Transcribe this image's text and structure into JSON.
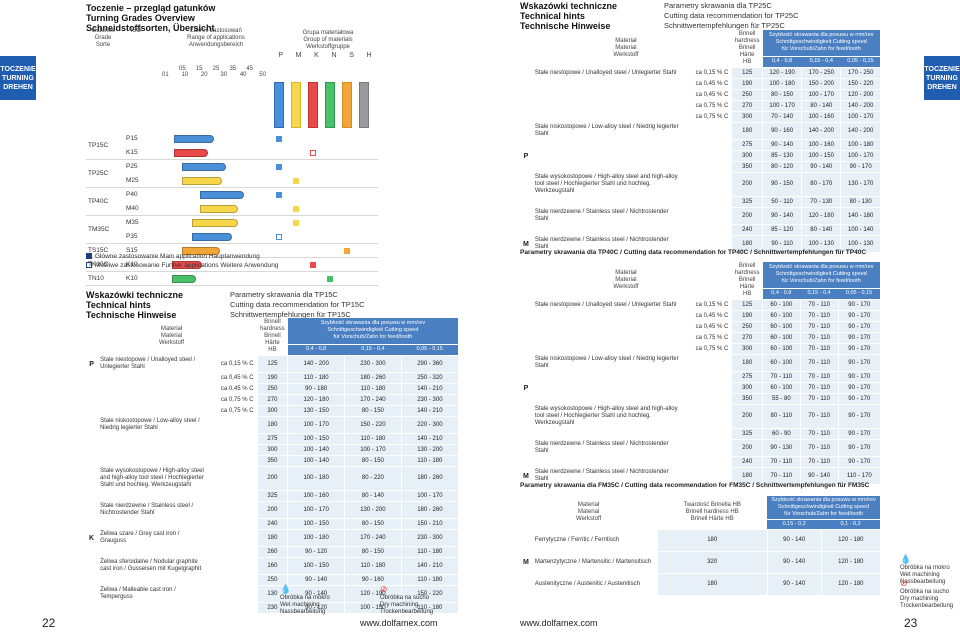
{
  "left_page": {
    "tab": [
      "TOCZENIE",
      "TURNING",
      "DREHEN"
    ],
    "title": [
      "Toczenie – przegląd gatunków",
      "Turning Grades Overview",
      "Schneidstoffsorten, Übersicht"
    ],
    "grade_chart": {
      "col_headers": {
        "grade": [
          "Gatunek",
          "Grade",
          "Sorte"
        ],
        "iso": "ISO",
        "range": [
          "Zakres zastosowań",
          "Range of applications",
          "Anwendungsbereich"
        ],
        "range_ticks_top": [
          "05",
          "15",
          "25",
          "35",
          "45"
        ],
        "range_ticks_bottom": [
          "01",
          "10",
          "20",
          "30",
          "40",
          "50"
        ],
        "group": [
          "Grupa materiałowa",
          "Group of materials",
          "Werkstoffgruppe"
        ],
        "group_letters": [
          "P",
          "M",
          "K",
          "N",
          "S",
          "H"
        ]
      },
      "rows": [
        {
          "grade": "TP15C",
          "iso": [
            "P15",
            "K15"
          ]
        },
        {
          "grade": "TP25C",
          "iso": [
            "P25",
            "M25"
          ]
        },
        {
          "grade": "TP40C",
          "iso": [
            "P40",
            "M40"
          ]
        },
        {
          "grade": "TM35C",
          "iso": [
            "M35",
            "P35"
          ]
        },
        {
          "grade": "TS15C",
          "iso": [
            "S15"
          ]
        },
        {
          "grade": "TK10C",
          "iso": [
            "K10"
          ]
        },
        {
          "grade": "TN10",
          "iso": [
            "K10"
          ]
        }
      ],
      "legend": {
        "main": "Główne zastosowanie Main application Hauptanwendung",
        "further": "Możliwe zastosowanie Further applications Weitere Anwendung"
      }
    },
    "hints": {
      "title": [
        "Wskazówki techniczne",
        "Technical hints",
        "Technische Hinweise"
      ],
      "subtitle": [
        "Parametry skrawania dla TP15C",
        "Cutting data recommendation for TP15C",
        "Schnittwertempfehlungen für TP15C"
      ],
      "header": {
        "material": [
          "Materiał",
          "Material",
          "Werkstoff"
        ],
        "hardness": [
          "Brinell",
          "hardness",
          "Brinell Härte",
          "HB"
        ],
        "speed": [
          "Szybkość skrawania dla posuwu w mm/rev",
          "Schnittgeschwindigkeit Cutting speed",
          "für Vorschub/Zahn for feed/tooth"
        ],
        "feeds": [
          "0,4 - 0,8",
          "0,15 - 0,4",
          "0,05 - 0,15"
        ]
      },
      "rows": [
        {
          "group": "P",
          "material": "Stale niestopowe / Unalloyed steel / Unlegierter Stahl",
          "sub": "ca 0,15 % C",
          "hb": "125",
          "v": [
            "140 - 200",
            "230 - 300",
            "290 - 360"
          ]
        },
        {
          "sub": "ca 0,45 % C",
          "hb": "190",
          "v": [
            "110 - 180",
            "180 - 260",
            "250 - 320"
          ]
        },
        {
          "sub": "ca 0,45 % C",
          "hb": "250",
          "v": [
            "90 - 180",
            "110 - 180",
            "140 - 210"
          ]
        },
        {
          "sub": "ca 0,75 % C",
          "hb": "270",
          "v": [
            "120 - 180",
            "170 - 240",
            "230 - 300"
          ]
        },
        {
          "sub": "ca 0,75 % C",
          "hb": "300",
          "v": [
            "130 - 150",
            "80 - 150",
            "140 - 210"
          ]
        },
        {
          "material": "Stale niskostopowe / Low-alloy steel / Niedrig legierter Stahl",
          "hb": "180",
          "v": [
            "100 - 170",
            "150 - 220",
            "220 - 300"
          ]
        },
        {
          "hb": "275",
          "v": [
            "100 - 150",
            "110 - 180",
            "140 - 210"
          ]
        },
        {
          "hb": "300",
          "v": [
            "100 - 140",
            "100 - 170",
            "130 - 200"
          ]
        },
        {
          "hb": "350",
          "v": [
            "100 - 140",
            "80 - 150",
            "110 - 180"
          ]
        },
        {
          "material": "Stale wysokostopowe / High-alloy steel and high-alloy tool steel / Hochlegierter Stahl und hochleg. Werkzeugstahl",
          "hb": "200",
          "v": [
            "100 - 180",
            "80 - 220",
            "180 - 260"
          ]
        },
        {
          "hb": "325",
          "v": [
            "100 - 160",
            "80 - 140",
            "100 - 170"
          ]
        },
        {
          "material": "Stale nierdzewne / Stainless steel / Nichtrostender Stahl",
          "hb": "200",
          "v": [
            "100 - 170",
            "130 - 200",
            "180 - 260"
          ]
        },
        {
          "hb": "240",
          "v": [
            "100 - 150",
            "80 - 150",
            "150 - 210"
          ]
        },
        {
          "group": "K",
          "material": "Żeliwa szare / Grey cast iron / Grauguss",
          "hb": "180",
          "v": [
            "100 - 180",
            "170 - 240",
            "230 - 300"
          ]
        },
        {
          "hb": "260",
          "v": [
            "90 - 120",
            "80 - 150",
            "110 - 180"
          ]
        },
        {
          "material": "Żeliwa sferoidalne / Nodular graphite cast iron / Gusseisen mit Kugelgraphit",
          "hb": "160",
          "v": [
            "100 - 150",
            "110 - 180",
            "140 - 210"
          ]
        },
        {
          "hb": "250",
          "v": [
            "90 - 140",
            "90 - 160",
            "110 - 180"
          ]
        },
        {
          "material": "Żeliwa / Malleable cast iron / Temperguss",
          "hb": "130",
          "v": [
            "90 - 140",
            "120 - 190",
            "150 - 220"
          ]
        },
        {
          "hb": "230",
          "v": [
            "90 - 120",
            "100 - 150",
            "110 - 180"
          ]
        }
      ]
    },
    "wet": [
      "Obróbka na mokro",
      "Wet machining",
      "Nassbearbeitung"
    ],
    "dry": [
      "Obróbka na sucho",
      "Dry machining",
      "Trockenbearbeitung"
    ],
    "page_number": "22",
    "url": "www.dolfamex.com"
  },
  "right_page": {
    "tab": [
      "TOCZENIE",
      "TURNING",
      "DREHEN"
    ],
    "title": [
      "Wskazówki techniczne",
      "Technical hints",
      "Technische Hinweise"
    ],
    "subtitle": [
      "Parametry skrawania dla TP25C",
      "Cutting data recommendation for TP25C",
      "Schnittwertempfehlungen für TP25C"
    ],
    "header": {
      "material": [
        "Materiał",
        "Material",
        "Werkstoff"
      ],
      "hardness": [
        "Brinell",
        "hardness",
        "Brinell Härte",
        "HB"
      ],
      "speed": [
        "Szybkość skrawania dla posuwu w mm/rev",
        "Schnittgeschwindigkeit Cutting speed",
        "für Vorschub/Zahn for feed/tooth"
      ],
      "feeds": [
        "0,4 - 0,8",
        "0,15 - 0,4",
        "0,05 - 0,15"
      ]
    },
    "tp25c": [
      {
        "sub": "ca 0,15 % C",
        "hb": "125",
        "v": [
          "120 - 190",
          "170 - 250",
          "170 - 250"
        ]
      },
      {
        "sub": "ca 0,45 % C",
        "hb": "190",
        "v": [
          "100 - 180",
          "150 - 200",
          "150 - 220"
        ]
      },
      {
        "sub": "ca 0,45 % C",
        "hb": "250",
        "v": [
          "80 - 150",
          "100 - 170",
          "120 - 200"
        ]
      },
      {
        "sub": "ca 0,75 % C",
        "hb": "270",
        "v": [
          "100 - 170",
          "80 - 140",
          "140 - 200"
        ]
      },
      {
        "sub": "ca 0,75 % C",
        "hb": "300",
        "v": [
          "70 - 140",
          "100 - 160",
          "100 - 170"
        ]
      },
      {
        "hb": "180",
        "v": [
          "90 - 160",
          "140 - 200",
          "140 - 200"
        ]
      },
      {
        "hb": "275",
        "v": [
          "90 - 140",
          "100 - 160",
          "100 - 180"
        ]
      },
      {
        "hb": "300",
        "v": [
          "85 - 130",
          "100 - 150",
          "100 - 170"
        ]
      },
      {
        "hb": "350",
        "v": [
          "80 - 120",
          "90 - 140",
          "90 - 170"
        ]
      },
      {
        "hb": "200",
        "v": [
          "90 - 150",
          "80 - 170",
          "130 - 170"
        ]
      },
      {
        "hb": "325",
        "v": [
          "50 - 110",
          "70 - 130",
          "80 - 130"
        ]
      },
      {
        "hb": "200",
        "v": [
          "90 - 140",
          "120 - 180",
          "140 - 180"
        ]
      },
      {
        "hb": "240",
        "v": [
          "85 - 120",
          "80 - 140",
          "100 - 140"
        ]
      },
      {
        "hb": "180",
        "v": [
          "90 - 110",
          "100 - 130",
          "100 - 130"
        ]
      }
    ],
    "tp25c_materials": [
      "Stale niestopowe / Unalloyed steel / Unlegierter Stahl",
      "Stale niskostopowe / Low-alloy steel / Niedrig legierter Stahl",
      "Stale wysokostopowe / High-alloy steel and high-alloy tool steel / Hochlegierter Stahl und hochleg. Werkzeugstahl",
      "Stale nierdzewne / Stainless steel / Nichtrostender Stahl",
      "Stale nierdzewne / Stainless steel / Nichtrostender Stahl"
    ],
    "tp40c_title": "Parametry skrawania dla TP40C / Cutting data recommendation for TP40C / Schnittwertempfehlungen für TP40C",
    "tp40c": [
      {
        "sub": "ca 0,15 % C",
        "hb": "125",
        "v": [
          "60 - 100",
          "70 - 110",
          "90 - 170"
        ]
      },
      {
        "sub": "ca 0,45 % C",
        "hb": "190",
        "v": [
          "60 - 100",
          "70 - 110",
          "90 - 170"
        ]
      },
      {
        "sub": "ca 0,45 % C",
        "hb": "250",
        "v": [
          "60 - 100",
          "70 - 110",
          "90 - 170"
        ]
      },
      {
        "sub": "ca 0,75 % C",
        "hb": "270",
        "v": [
          "60 - 100",
          "70 - 110",
          "90 - 170"
        ]
      },
      {
        "sub": "ca 0,75 % C",
        "hb": "300",
        "v": [
          "60 - 100",
          "70 - 110",
          "90 - 170"
        ]
      },
      {
        "hb": "180",
        "v": [
          "60 - 100",
          "70 - 110",
          "90 - 170"
        ]
      },
      {
        "hb": "275",
        "v": [
          "70 - 110",
          "70 - 110",
          "90 - 170"
        ]
      },
      {
        "hb": "300",
        "v": [
          "60 - 100",
          "70 - 110",
          "90 - 170"
        ]
      },
      {
        "hb": "350",
        "v": [
          "55 - 80",
          "70 - 110",
          "90 - 170"
        ]
      },
      {
        "hb": "200",
        "v": [
          "80 - 110",
          "70 - 110",
          "90 - 170"
        ]
      },
      {
        "hb": "325",
        "v": [
          "60 - 90",
          "70 - 110",
          "90 - 170"
        ]
      },
      {
        "hb": "200",
        "v": [
          "90 - 130",
          "70 - 110",
          "90 - 170"
        ]
      },
      {
        "hb": "240",
        "v": [
          "70 - 110",
          "70 - 110",
          "90 - 170"
        ]
      },
      {
        "hb": "180",
        "v": [
          "70 - 110",
          "90 - 140",
          "110 - 170"
        ]
      }
    ],
    "tp40c_materials": [
      "Stale niestopowe / Unalloyed steel / Unlegierter Stahl",
      "Stale niskostopowe / Low-alloy steel / Niedrig legierter Stahl",
      "Stale wysokostopowe / High-alloy steel and high-alloy tool steel / Hochlegierter Stahl und hochleg. Werkzeugstahl",
      "Stale nierdzewne / Stainless steel / Nichtrostender Stahl",
      "Stale nierdzewne / Stainless steel / Nichtrostender Stahl"
    ],
    "fm35c_title": "Parametry skrawania dla FM35C / Cutting data recommendation for FM35C / Schnittwertempfehlungen für FM35C",
    "fm35c_header": {
      "hardness": [
        "Twardość Brinella HB",
        "Brinell hardness HB",
        "Brinell Härte HB"
      ],
      "feeds": [
        "0,15 - 0,2",
        "0,1 - 0,2"
      ]
    },
    "fm35c": [
      {
        "material": "Ferrytyczne / Ferritic / Ferritisch",
        "hb": "180",
        "v": [
          "90 - 140",
          "120 - 180"
        ]
      },
      {
        "material": "Martenzytyczne / Martensitic / Martensitisch",
        "hb": "320",
        "v": [
          "90 - 140",
          "120 - 180"
        ]
      },
      {
        "material": "Austenityczne / Austenitic / Austenitisch",
        "hb": "180",
        "v": [
          "90 - 140",
          "120 - 180"
        ]
      }
    ],
    "wet": [
      "Obróbka na mokro",
      "Wet machining",
      "Nassbearbeitung"
    ],
    "dry": [
      "Obróbka na sucho",
      "Dry machining",
      "Trockenbearbeitung"
    ],
    "page_number": "23",
    "url": "www.dolfamex.com"
  },
  "colors": {
    "tab": "#1f5db0",
    "header_blue": "#4a7fc1",
    "cell": "#e8f0f7",
    "P": "#4a90d9",
    "M": "#f6d64a",
    "K": "#e84a4a",
    "N": "#4ac06b",
    "S": "#f2a63a",
    "H": "#9a9a9a"
  }
}
